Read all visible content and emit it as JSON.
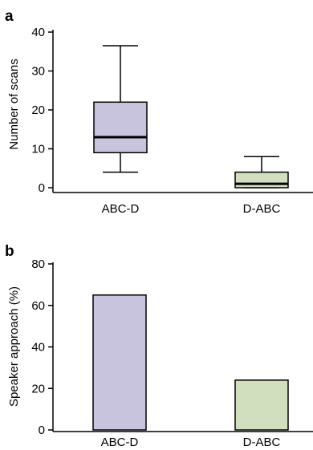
{
  "chart_data": [
    {
      "panel": "a",
      "type": "box",
      "ylabel": "Number of scans",
      "ylim": [
        0,
        40
      ],
      "yticks": [
        0,
        10,
        20,
        30,
        40
      ],
      "categories": [
        "ABC-D",
        "D-ABC"
      ],
      "boxes": [
        {
          "category": "ABC-D",
          "min": 4,
          "q1": 9,
          "median": 13,
          "q3": 22,
          "max": 36.5,
          "color": "#c9c4de"
        },
        {
          "category": "D-ABC",
          "min": 0,
          "q1": 0,
          "median": 1,
          "q3": 4,
          "max": 8,
          "color": "#d2dfbe"
        }
      ]
    },
    {
      "panel": "b",
      "type": "bar",
      "ylabel": "Speaker approach (%)",
      "ylim": [
        0,
        80
      ],
      "yticks": [
        0,
        20,
        40,
        60,
        80
      ],
      "categories": [
        "ABC-D",
        "D-ABC"
      ],
      "values": [
        65,
        24
      ],
      "colors": [
        "#c9c4de",
        "#d2dfbe"
      ]
    }
  ]
}
